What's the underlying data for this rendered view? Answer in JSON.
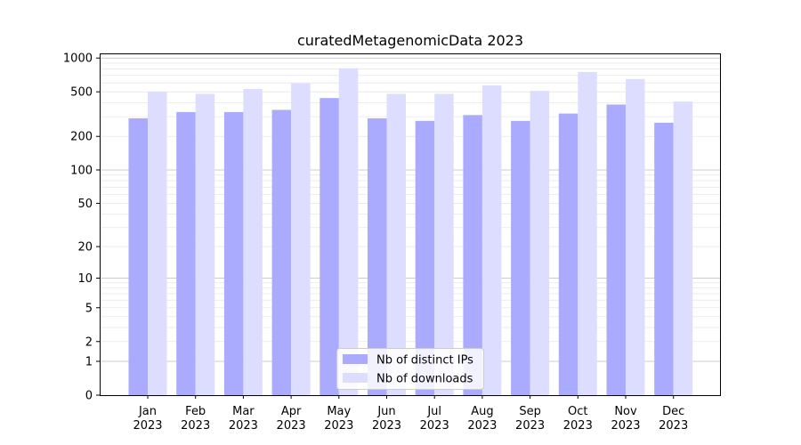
{
  "chart_data": {
    "type": "bar",
    "title": "curatedMetagenomicData 2023",
    "xlabel": "",
    "ylabel": "",
    "y_scale": "log(1+y)",
    "y_ticks": [
      0,
      1,
      2,
      5,
      10,
      20,
      50,
      100,
      200,
      500,
      1000
    ],
    "y_tick_labels": [
      "0",
      "1",
      "2",
      "5",
      "10",
      "20",
      "50",
      "100",
      "200",
      "500",
      "1000"
    ],
    "ylim": [
      0,
      1100
    ],
    "grid": true,
    "legend_position": "bottom-center",
    "categories": [
      "Jan\n2023",
      "Feb\n2023",
      "Mar\n2023",
      "Apr\n2023",
      "May\n2023",
      "Jun\n2023",
      "Jul\n2023",
      "Aug\n2023",
      "Sep\n2023",
      "Oct\n2023",
      "Nov\n2023",
      "Dec\n2023"
    ],
    "series": [
      {
        "name": "Nb of distinct IPs",
        "color": "#aaaaff",
        "values": [
          290,
          330,
          330,
          345,
          440,
          290,
          275,
          310,
          275,
          320,
          385,
          265
        ]
      },
      {
        "name": "Nb of downloads",
        "color": "#ddddff",
        "values": [
          500,
          480,
          530,
          595,
          810,
          480,
          480,
          570,
          510,
          750,
          650,
          410
        ]
      }
    ]
  }
}
